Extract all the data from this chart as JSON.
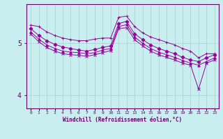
{
  "xlabel": "Windchill (Refroidissement éolien,°C)",
  "bg_color": "#c8eef0",
  "line_color": "#990099",
  "grid_color": "#aacccc",
  "text_color": "#660066",
  "xlim": [
    -0.5,
    23.5
  ],
  "ylim": [
    3.75,
    5.75
  ],
  "yticks": [
    4,
    5
  ],
  "xtick_labels": [
    "0",
    "1",
    "2",
    "3",
    "4",
    "5",
    "6",
    "7",
    "8",
    "9",
    "10",
    "11",
    "12",
    "13",
    "14",
    "15",
    "16",
    "17",
    "18",
    "19",
    "20",
    "21",
    "22",
    "23"
  ],
  "xtick_pos": [
    0,
    1,
    2,
    3,
    4,
    5,
    6,
    7,
    8,
    9,
    10,
    11,
    12,
    13,
    14,
    15,
    16,
    17,
    18,
    19,
    20,
    21,
    22,
    23
  ],
  "lines": [
    [
      5.35,
      5.32,
      5.22,
      5.15,
      5.1,
      5.07,
      5.05,
      5.05,
      5.08,
      5.1,
      5.1,
      5.5,
      5.52,
      5.32,
      5.2,
      5.12,
      5.07,
      5.02,
      4.97,
      4.9,
      4.85,
      4.72,
      4.8,
      4.8
    ],
    [
      5.28,
      5.15,
      5.05,
      4.98,
      4.93,
      4.9,
      4.87,
      4.85,
      4.88,
      4.92,
      4.95,
      5.38,
      5.42,
      5.18,
      5.07,
      4.97,
      4.9,
      4.85,
      4.8,
      4.73,
      4.68,
      4.65,
      4.72,
      4.78
    ],
    [
      5.22,
      5.08,
      4.97,
      4.9,
      4.85,
      4.83,
      4.82,
      4.8,
      4.82,
      4.87,
      4.9,
      5.32,
      5.36,
      5.12,
      5.0,
      4.9,
      4.83,
      4.78,
      4.73,
      4.67,
      4.62,
      4.58,
      4.65,
      4.72
    ],
    [
      5.18,
      5.03,
      4.92,
      4.85,
      4.8,
      4.78,
      4.77,
      4.75,
      4.78,
      4.82,
      4.86,
      5.28,
      5.3,
      5.07,
      4.95,
      4.85,
      4.78,
      4.73,
      4.68,
      4.62,
      4.58,
      4.12,
      4.62,
      4.68
    ]
  ],
  "markers": [
    "+",
    "D",
    "^",
    "x"
  ]
}
